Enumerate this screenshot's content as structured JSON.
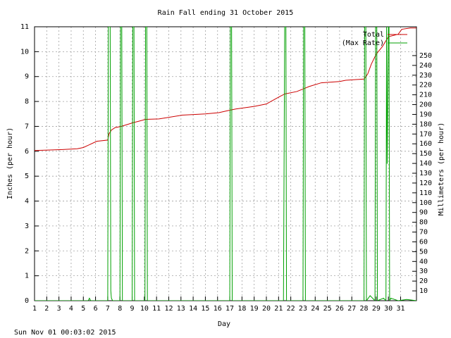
{
  "chart_data": {
    "type": "line",
    "title": "Rain Fall ending 31 October 2015",
    "xlabel": "Day",
    "ylabel": "Inches (per hour)",
    "y2label": "Millimeters (per hour)",
    "timestamp": "Sun Nov 01 00:03:02 2015",
    "xlim": [
      1,
      32.3
    ],
    "xticks": [
      1,
      2,
      3,
      4,
      5,
      6,
      7,
      8,
      9,
      10,
      11,
      12,
      13,
      14,
      15,
      16,
      17,
      18,
      19,
      20,
      21,
      22,
      23,
      24,
      25,
      26,
      27,
      28,
      29,
      30,
      31
    ],
    "ylim": [
      0,
      11
    ],
    "yticks": [
      0,
      1,
      2,
      3,
      4,
      5,
      6,
      7,
      8,
      9,
      10,
      11
    ],
    "y2lim": [
      0,
      279.4
    ],
    "y2ticks": [
      10,
      20,
      30,
      40,
      50,
      60,
      70,
      80,
      90,
      100,
      110,
      120,
      130,
      140,
      150,
      160,
      170,
      180,
      190,
      200,
      210,
      220,
      230,
      240,
      250
    ],
    "grid": true,
    "legend": "top-right",
    "series": [
      {
        "name": "Total",
        "color": "#cc0000",
        "x": [
          1,
          3.3,
          4.5,
          5,
          6.1,
          7.0,
          7.1,
          7.3,
          7.6,
          8.1,
          9.1,
          9.5,
          10.1,
          11.2,
          13.1,
          15,
          16.1,
          17,
          17.5,
          19,
          20,
          21.1,
          21.5,
          22.5,
          23,
          23.5,
          24.5,
          26,
          26.5,
          28,
          28.3,
          28.6,
          29,
          29.5,
          30,
          30.8,
          31.1,
          31.8,
          32.3
        ],
        "values": [
          6.03,
          6.07,
          6.1,
          6.15,
          6.4,
          6.45,
          6.7,
          6.85,
          6.95,
          7.0,
          7.15,
          7.2,
          7.28,
          7.3,
          7.45,
          7.5,
          7.55,
          7.65,
          7.7,
          7.8,
          7.9,
          8.2,
          8.3,
          8.4,
          8.5,
          8.6,
          8.75,
          8.8,
          8.85,
          8.9,
          9.1,
          9.5,
          9.9,
          10.2,
          10.6,
          10.7,
          10.9,
          10.95,
          10.95
        ]
      },
      {
        "name": "(Max Rate)",
        "color": "#00a000",
        "x": [
          1,
          5.4,
          5.5,
          5.6,
          7.0,
          7.05,
          7.2,
          7.25,
          7.3,
          7.4,
          8.0,
          8.05,
          8.15,
          8.2,
          9.0,
          9.05,
          9.15,
          9.2,
          10.05,
          10.1,
          10.2,
          10.25,
          17.0,
          17.05,
          17.15,
          17.2,
          21.4,
          21.45,
          21.5,
          21.6,
          21.65,
          23.0,
          23.05,
          23.15,
          23.2,
          28.0,
          28.05,
          28.15,
          28.2,
          28.5,
          28.9,
          28.95,
          29.05,
          29.1,
          29.6,
          29.8,
          29.85,
          29.9,
          30.0,
          30.05,
          30.1,
          30.2,
          30.8,
          31.5,
          32.3
        ],
        "values": [
          0,
          0,
          0.1,
          0,
          0,
          11,
          11,
          0.4,
          0.1,
          0,
          0,
          11,
          11,
          0,
          0,
          11,
          11,
          0,
          0,
          11,
          11,
          0,
          0,
          11,
          11,
          0,
          0,
          5.5,
          11,
          11,
          0,
          0,
          11,
          11,
          0,
          0,
          11,
          11,
          0,
          0.2,
          0,
          11,
          11,
          0,
          0.1,
          0,
          11,
          5.5,
          11,
          11,
          0,
          0.1,
          0,
          0.05,
          0
        ]
      }
    ]
  }
}
